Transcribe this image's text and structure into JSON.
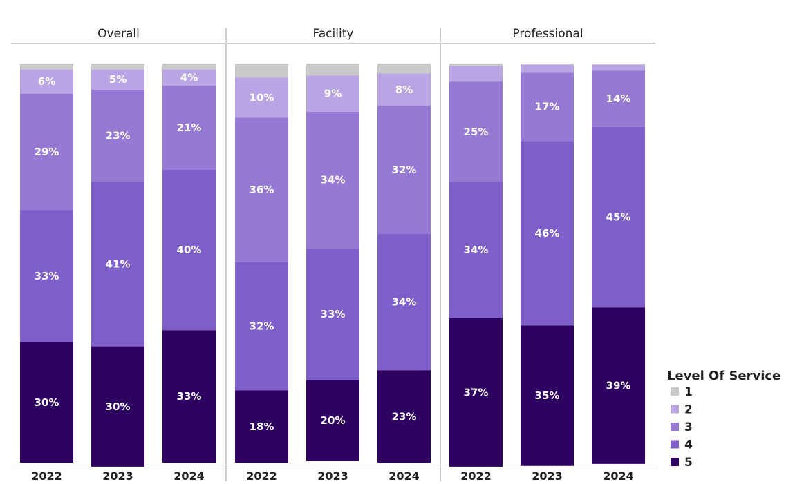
{
  "chart_data": {
    "type": "bar",
    "stacked": true,
    "normalized": true,
    "ylim": [
      0,
      100
    ],
    "legend": {
      "title": "Level Of Service",
      "placement": "bottom-right",
      "entries": [
        "1",
        "2",
        "3",
        "4",
        "5"
      ]
    },
    "colors": {
      "1": "#c9c9c9",
      "2": "#b9a5e3",
      "3": "#9579d3",
      "4": "#7e5ec9",
      "5": "#2e0062"
    },
    "panels": [
      {
        "name": "Overall",
        "categories": [
          "2022",
          "2023",
          "2024"
        ],
        "series": [
          {
            "name": "1",
            "values": [
              1.5,
              1.5,
              1.5
            ],
            "labels": [
              "",
              "",
              ""
            ]
          },
          {
            "name": "2",
            "values": [
              6,
              5,
              4
            ],
            "labels": [
              "6%",
              "5%",
              "4%"
            ]
          },
          {
            "name": "3",
            "values": [
              29,
              23,
              21
            ],
            "labels": [
              "29%",
              "23%",
              "21%"
            ]
          },
          {
            "name": "4",
            "values": [
              33,
              41,
              40
            ],
            "labels": [
              "33%",
              "41%",
              "40%"
            ]
          },
          {
            "name": "5",
            "values": [
              30,
              30,
              33
            ],
            "labels": [
              "30%",
              "30%",
              "33%"
            ]
          }
        ]
      },
      {
        "name": "Facility",
        "categories": [
          "2022",
          "2023",
          "2024"
        ],
        "series": [
          {
            "name": "1",
            "values": [
              3.5,
              3,
              2.5
            ],
            "labels": [
              "",
              "",
              ""
            ]
          },
          {
            "name": "2",
            "values": [
              10,
              9,
              8
            ],
            "labels": [
              "10%",
              "9%",
              "8%"
            ]
          },
          {
            "name": "3",
            "values": [
              36,
              34,
              32
            ],
            "labels": [
              "36%",
              "34%",
              "32%"
            ]
          },
          {
            "name": "4",
            "values": [
              32,
              33,
              34
            ],
            "labels": [
              "32%",
              "33%",
              "34%"
            ]
          },
          {
            "name": "5",
            "values": [
              18,
              20,
              23
            ],
            "labels": [
              "18%",
              "20%",
              "23%"
            ]
          }
        ]
      },
      {
        "name": "Professional",
        "categories": [
          "2022",
          "2023",
          "2024"
        ],
        "series": [
          {
            "name": "1",
            "values": [
              0.7,
              0.3,
              0.3
            ],
            "labels": [
              "",
              "",
              ""
            ]
          },
          {
            "name": "2",
            "values": [
              3.8,
              2,
              1.5
            ],
            "labels": [
              "",
              "",
              ""
            ]
          },
          {
            "name": "3",
            "values": [
              25,
              17,
              14
            ],
            "labels": [
              "25%",
              "17%",
              "14%"
            ]
          },
          {
            "name": "4",
            "values": [
              34,
              46,
              45
            ],
            "labels": [
              "34%",
              "46%",
              "45%"
            ]
          },
          {
            "name": "5",
            "values": [
              37,
              35,
              39
            ],
            "labels": [
              "37%",
              "35%",
              "39%"
            ]
          }
        ]
      }
    ]
  }
}
